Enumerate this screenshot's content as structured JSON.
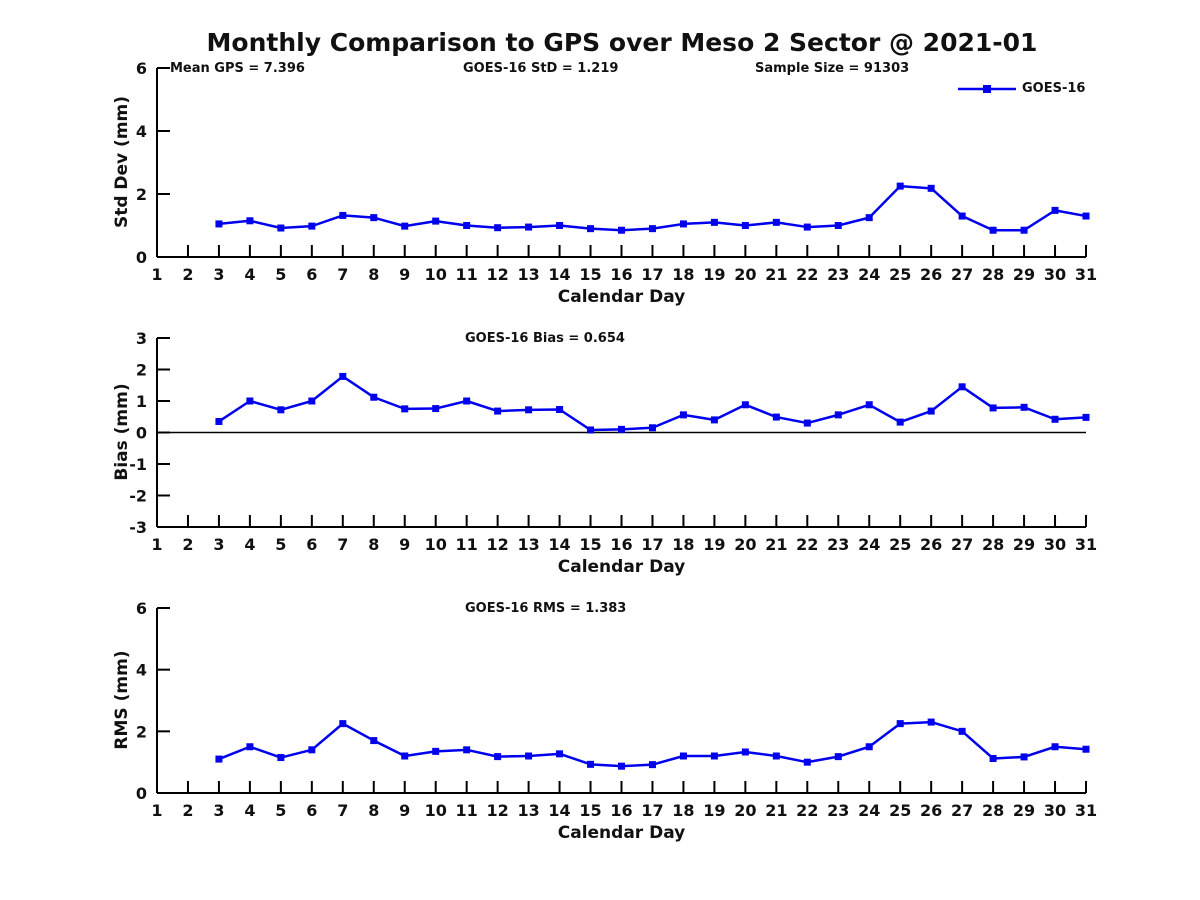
{
  "title": "Monthly Comparison to GPS over Meso 2 Sector @ 2021-01",
  "legend": {
    "label": "GOES-16"
  },
  "colors": {
    "series": "#0000EE",
    "axis": "#000000",
    "text": "#111111"
  },
  "chart_data": [
    {
      "type": "line",
      "ylabel": "Std Dev (mm)",
      "xlabel": "Calendar Day",
      "ylim": [
        0,
        6
      ],
      "yticks": [
        0,
        2,
        4,
        6
      ],
      "xlim": [
        1,
        31
      ],
      "xticks": [
        1,
        2,
        3,
        4,
        5,
        6,
        7,
        8,
        9,
        10,
        11,
        12,
        13,
        14,
        15,
        16,
        17,
        18,
        19,
        20,
        21,
        22,
        23,
        24,
        25,
        26,
        27,
        28,
        29,
        30,
        31
      ],
      "grid": false,
      "legend_position": "top-right",
      "annotations": [
        {
          "text": "Mean GPS = 7.396"
        },
        {
          "text": "GOES-16 StD = 1.219"
        },
        {
          "text": "Sample Size = 91303"
        }
      ],
      "series": [
        {
          "name": "GOES-16",
          "x": [
            3,
            4,
            5,
            6,
            7,
            8,
            9,
            10,
            11,
            12,
            13,
            14,
            15,
            16,
            17,
            18,
            19,
            20,
            21,
            22,
            23,
            24,
            25,
            26,
            27,
            28,
            29,
            30,
            31
          ],
          "y": [
            1.05,
            1.15,
            0.92,
            0.98,
            1.32,
            1.25,
            0.98,
            1.14,
            1.0,
            0.93,
            0.95,
            1.0,
            0.9,
            0.85,
            0.9,
            1.05,
            1.1,
            1.0,
            1.1,
            0.95,
            1.0,
            1.25,
            2.25,
            2.18,
            1.3,
            0.85,
            0.85,
            1.48,
            1.3
          ]
        }
      ]
    },
    {
      "type": "line",
      "ylabel": "Bias (mm)",
      "xlabel": "Calendar Day",
      "ylim": [
        -3,
        3
      ],
      "yticks": [
        -3,
        -2,
        -1,
        0,
        1,
        2,
        3
      ],
      "xlim": [
        1,
        31
      ],
      "xticks": [
        1,
        2,
        3,
        4,
        5,
        6,
        7,
        8,
        9,
        10,
        11,
        12,
        13,
        14,
        15,
        16,
        17,
        18,
        19,
        20,
        21,
        22,
        23,
        24,
        25,
        26,
        27,
        28,
        29,
        30,
        31
      ],
      "grid": false,
      "zero_line": true,
      "annotations": [
        {
          "text": "GOES-16 Bias = 0.654"
        }
      ],
      "series": [
        {
          "name": "GOES-16",
          "x": [
            3,
            4,
            5,
            6,
            7,
            8,
            9,
            10,
            11,
            12,
            13,
            14,
            15,
            16,
            17,
            18,
            19,
            20,
            21,
            22,
            23,
            24,
            25,
            26,
            27,
            28,
            29,
            30,
            31
          ],
          "y": [
            0.35,
            1.0,
            0.72,
            1.0,
            1.78,
            1.12,
            0.75,
            0.76,
            1.0,
            0.68,
            0.72,
            0.73,
            0.08,
            0.1,
            0.15,
            0.56,
            0.4,
            0.88,
            0.49,
            0.3,
            0.56,
            0.88,
            0.33,
            0.68,
            1.45,
            0.78,
            0.8,
            0.42,
            0.48
          ]
        }
      ]
    },
    {
      "type": "line",
      "ylabel": "RMS (mm)",
      "xlabel": "Calendar Day",
      "ylim": [
        0,
        6
      ],
      "yticks": [
        0,
        2,
        4,
        6
      ],
      "xlim": [
        1,
        31
      ],
      "xticks": [
        1,
        2,
        3,
        4,
        5,
        6,
        7,
        8,
        9,
        10,
        11,
        12,
        13,
        14,
        15,
        16,
        17,
        18,
        19,
        20,
        21,
        22,
        23,
        24,
        25,
        26,
        27,
        28,
        29,
        30,
        31
      ],
      "grid": false,
      "annotations": [
        {
          "text": "GOES-16 RMS = 1.383"
        }
      ],
      "series": [
        {
          "name": "GOES-16",
          "x": [
            3,
            4,
            5,
            6,
            7,
            8,
            9,
            10,
            11,
            12,
            13,
            14,
            15,
            16,
            17,
            18,
            19,
            20,
            21,
            22,
            23,
            24,
            25,
            26,
            27,
            28,
            29,
            30,
            31
          ],
          "y": [
            1.1,
            1.5,
            1.15,
            1.4,
            2.25,
            1.7,
            1.2,
            1.35,
            1.4,
            1.18,
            1.2,
            1.27,
            0.93,
            0.87,
            0.92,
            1.2,
            1.2,
            1.33,
            1.2,
            1.0,
            1.18,
            1.5,
            2.25,
            2.3,
            2.0,
            1.12,
            1.17,
            1.5,
            1.42
          ]
        }
      ]
    }
  ]
}
